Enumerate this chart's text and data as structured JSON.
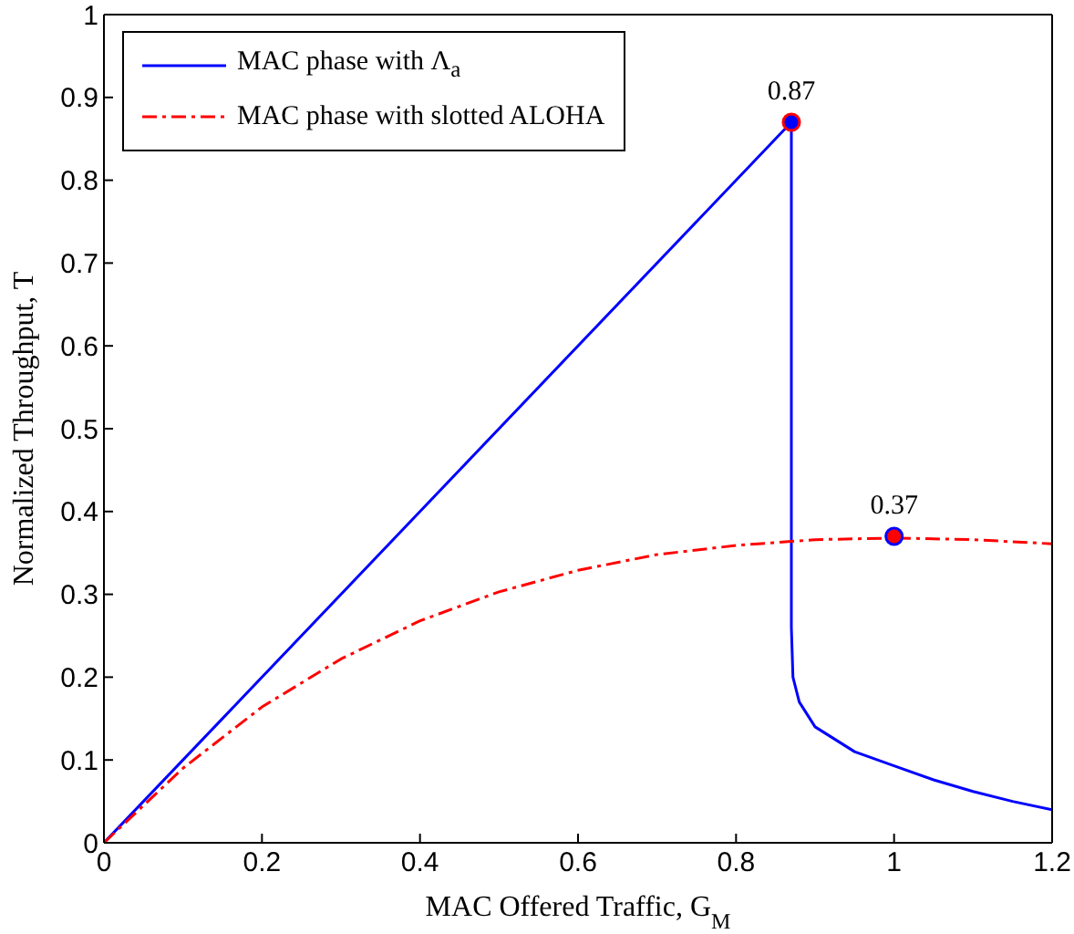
{
  "chart_data": {
    "type": "line",
    "xlabel": "MAC Offered Traffic, G$_{M}$",
    "ylabel": "Normalized Throughput, T",
    "xlim": [
      0,
      1.2
    ],
    "xticks": [
      0,
      0.2,
      0.4,
      0.6,
      0.8,
      1,
      1.2
    ],
    "ylim": [
      0,
      1
    ],
    "yticks": [
      0,
      0.1,
      0.2,
      0.3,
      0.4,
      0.5,
      0.6,
      0.7,
      0.8,
      0.9,
      1
    ],
    "legend": "top left",
    "series": [
      {
        "name": "MAC phase with Λ$_{a}$",
        "color": "#0000ff",
        "line_style": "solid",
        "x": [
          0,
          0.87,
          0.87,
          0.872,
          0.88,
          0.9,
          0.95,
          1.0,
          1.05,
          1.1,
          1.15,
          1.2
        ],
        "values": [
          0,
          0.87,
          0.26,
          0.2,
          0.17,
          0.14,
          0.11,
          0.093,
          0.076,
          0.062,
          0.05,
          0.04
        ]
      },
      {
        "name": "MAC phase with slotted ALOHA",
        "color": "#ff0000",
        "line_style": "dashed",
        "x": [
          0,
          0.1,
          0.2,
          0.3,
          0.4,
          0.5,
          0.6,
          0.7,
          0.8,
          0.9,
          1.0,
          1.1,
          1.2
        ],
        "values": [
          0,
          0.09,
          0.164,
          0.222,
          0.268,
          0.303,
          0.329,
          0.348,
          0.359,
          0.366,
          0.368,
          0.366,
          0.361
        ]
      },
      {
        "type": "scatter",
        "color": "#0000ff",
        "marker": "circle",
        "x": [
          0.87
        ],
        "values": [
          0.87
        ],
        "value_labels": [
          "0.87"
        ]
      },
      {
        "type": "scatter",
        "color": "#ff0000",
        "marker": "circle",
        "x": [
          1
        ],
        "values": [
          0.37
        ],
        "value_labels": [
          "0.37"
        ]
      }
    ]
  }
}
